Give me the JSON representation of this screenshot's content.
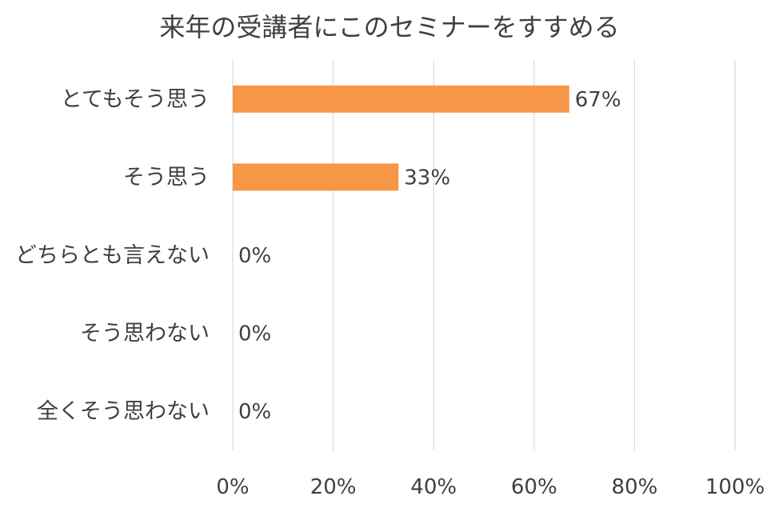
{
  "chart_data": {
    "type": "bar",
    "orientation": "horizontal",
    "title": "来年の受講者にこのセミナーをすすめる",
    "categories": [
      "とてもそう思う",
      "そう思う",
      "どちらとも言えない",
      "そう思わない",
      "全くそう思わない"
    ],
    "values": [
      67,
      33,
      0,
      0,
      0
    ],
    "data_labels": [
      "67%",
      "33%",
      "0%",
      "0%",
      "0%"
    ],
    "xlim": [
      0,
      100
    ],
    "x_ticks": [
      "0%",
      "20%",
      "40%",
      "60%",
      "80%",
      "100%"
    ],
    "xlabel": "",
    "ylabel": "",
    "grid": true,
    "legend": "none",
    "bar_color": "#F79646",
    "grid_color": "#D9D9D9",
    "text_color": "#404040"
  }
}
